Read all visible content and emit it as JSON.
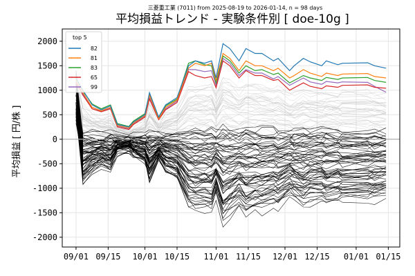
{
  "header": {
    "subtitle": "三菱重工業 (7011) from 2025-08-19 to 2026-01-14, n = 98 days",
    "title": "平均損益トレンド - 実験条件別 [ doe-10g ]"
  },
  "chart_data": {
    "type": "line",
    "xlabel": "",
    "ylabel": "平均損益 [ 円/株 ]",
    "xlim": [
      "2025-08-26",
      "2026-01-20"
    ],
    "ylim": [
      -2200,
      2250
    ],
    "x_ticks": [
      "09/01",
      "09/15",
      "10/01",
      "10/15",
      "11/01",
      "11/15",
      "12/01",
      "12/15",
      "01/01",
      "01/15"
    ],
    "x_tick_dates": [
      "2025-09-01",
      "2025-09-15",
      "2025-10-01",
      "2025-10-15",
      "2025-11-01",
      "2025-11-15",
      "2025-12-01",
      "2025-12-15",
      "2026-01-01",
      "2026-01-15"
    ],
    "y_ticks": [
      -2000,
      -1500,
      -1000,
      -500,
      0,
      500,
      1000,
      1500,
      2000
    ],
    "grid": true,
    "zero_line": true,
    "legend": {
      "title": "top 5",
      "placement": "top-left"
    },
    "dates": [
      "2025-09-01",
      "2025-09-04",
      "2025-09-08",
      "2025-09-12",
      "2025-09-16",
      "2025-09-19",
      "2025-09-24",
      "2025-09-26",
      "2025-10-01",
      "2025-10-03",
      "2025-10-07",
      "2025-10-10",
      "2025-10-15",
      "2025-10-20",
      "2025-10-23",
      "2025-10-27",
      "2025-10-30",
      "2025-11-01",
      "2025-11-04",
      "2025-11-07",
      "2025-11-11",
      "2025-11-14",
      "2025-11-18",
      "2025-11-21",
      "2025-11-26",
      "2025-11-28",
      "2025-12-03",
      "2025-12-05",
      "2025-12-09",
      "2025-12-12",
      "2025-12-17",
      "2025-12-19",
      "2025-12-24",
      "2025-12-26",
      "2026-01-06",
      "2026-01-09",
      "2026-01-14"
    ],
    "series": [
      {
        "name": "82",
        "color": "#1f77b4",
        "values": [
          1250,
          1000,
          700,
          600,
          680,
          300,
          250,
          350,
          500,
          950,
          450,
          700,
          850,
          1500,
          1600,
          1550,
          1600,
          1250,
          1950,
          1850,
          1600,
          1850,
          1750,
          1750,
          1600,
          1650,
          1400,
          1500,
          1650,
          1580,
          1500,
          1600,
          1520,
          1550,
          1560,
          1500,
          1450
        ]
      },
      {
        "name": "81",
        "color": "#ff7f0e",
        "values": [
          1200,
          950,
          650,
          580,
          650,
          280,
          230,
          330,
          480,
          900,
          420,
          650,
          800,
          1450,
          1550,
          1500,
          1550,
          1200,
          1750,
          1650,
          1400,
          1600,
          1500,
          1500,
          1400,
          1450,
          1250,
          1300,
          1420,
          1350,
          1280,
          1350,
          1300,
          1330,
          1340,
          1280,
          1250
        ]
      },
      {
        "name": "83",
        "color": "#2ca02c",
        "values": [
          1220,
          980,
          720,
          620,
          700,
          320,
          260,
          370,
          520,
          920,
          450,
          680,
          820,
          1550,
          1600,
          1520,
          1500,
          1150,
          1700,
          1600,
          1350,
          1500,
          1400,
          1420,
          1320,
          1350,
          1150,
          1200,
          1300,
          1250,
          1200,
          1260,
          1220,
          1250,
          1260,
          1200,
          1160
        ]
      },
      {
        "name": "65",
        "color": "#d62728",
        "values": [
          1150,
          900,
          620,
          560,
          620,
          250,
          200,
          300,
          450,
          820,
          400,
          600,
          750,
          1380,
          1300,
          1250,
          1280,
          1050,
          1600,
          1500,
          1250,
          1400,
          1300,
          1300,
          1200,
          1220,
          1000,
          1050,
          1150,
          1080,
          1030,
          1090,
          1060,
          1100,
          1110,
          1060,
          1040
        ]
      },
      {
        "name": "99",
        "color": "#9467bd",
        "values": [
          1180,
          920,
          650,
          570,
          640,
          270,
          220,
          310,
          470,
          850,
          410,
          620,
          780,
          1420,
          1420,
          1380,
          1400,
          1100,
          1650,
          1550,
          1300,
          1420,
          1350,
          1350,
          1230,
          1280,
          1100,
          1150,
          1250,
          1170,
          1120,
          1180,
          1150,
          1170,
          1160,
          1080,
          960
        ]
      }
    ],
    "background_series": {
      "count": 93,
      "color": "#000000",
      "faded": true
    }
  },
  "colors": {
    "grid": "#e6e6e6",
    "zero_line": "#b0b0b0",
    "axis": "#000000",
    "faded_line": "#c8c8c8"
  }
}
